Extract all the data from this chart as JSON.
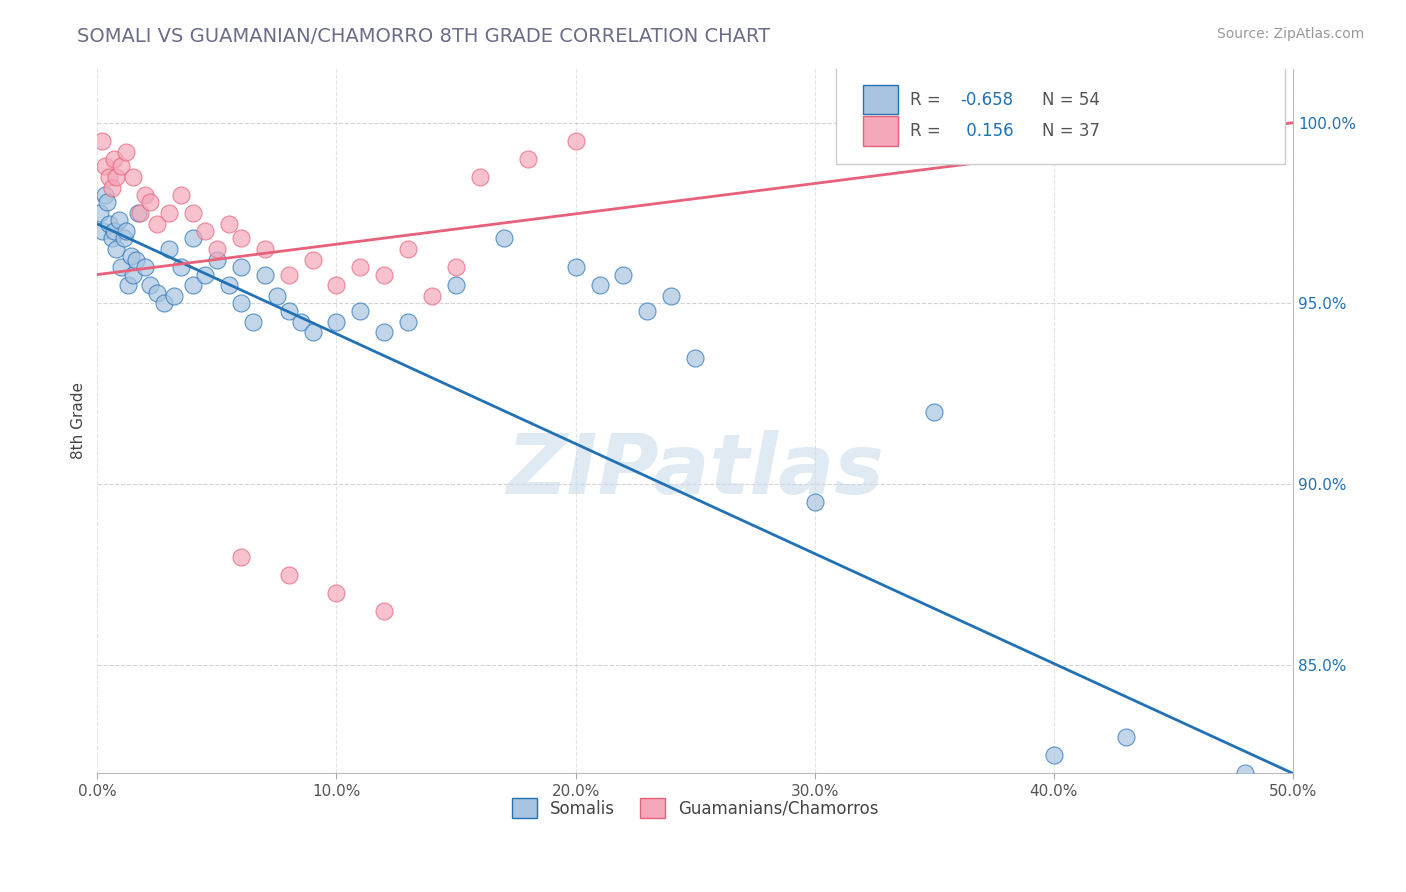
{
  "title": "SOMALI VS GUAMANIAN/CHAMORRO 8TH GRADE CORRELATION CHART",
  "source": "Source: ZipAtlas.com",
  "ylabel": "8th Grade",
  "xlim": [
    0.0,
    50.0
  ],
  "ylim": [
    82.0,
    101.5
  ],
  "xticks": [
    0.0,
    10.0,
    20.0,
    30.0,
    40.0,
    50.0
  ],
  "yticks": [
    85.0,
    90.0,
    95.0,
    100.0
  ],
  "ytick_labels": [
    "85.0%",
    "90.0%",
    "95.0%",
    "100.0%"
  ],
  "xtick_labels": [
    "0.0%",
    "10.0%",
    "20.0%",
    "30.0%",
    "40.0%",
    "50.0%"
  ],
  "legend_blue_label": "Somalis",
  "legend_pink_label": "Guamanians/Chamorros",
  "blue_R": -0.658,
  "blue_N": 54,
  "pink_R": 0.156,
  "pink_N": 37,
  "blue_color": "#a8c4e0",
  "pink_color": "#f4a7b9",
  "blue_line_color": "#2171b5",
  "pink_line_color": "#e8607a",
  "blue_scatter": [
    [
      0.1,
      97.5
    ],
    [
      0.2,
      97.0
    ],
    [
      0.3,
      98.0
    ],
    [
      0.4,
      97.8
    ],
    [
      0.5,
      97.2
    ],
    [
      0.6,
      96.8
    ],
    [
      0.7,
      97.0
    ],
    [
      0.8,
      96.5
    ],
    [
      0.9,
      97.3
    ],
    [
      1.0,
      96.0
    ],
    [
      1.1,
      96.8
    ],
    [
      1.2,
      97.0
    ],
    [
      1.3,
      95.5
    ],
    [
      1.4,
      96.3
    ],
    [
      1.5,
      95.8
    ],
    [
      1.6,
      96.2
    ],
    [
      1.7,
      97.5
    ],
    [
      2.0,
      96.0
    ],
    [
      2.2,
      95.5
    ],
    [
      2.5,
      95.3
    ],
    [
      2.8,
      95.0
    ],
    [
      3.0,
      96.5
    ],
    [
      3.2,
      95.2
    ],
    [
      3.5,
      96.0
    ],
    [
      4.0,
      95.5
    ],
    [
      4.0,
      96.8
    ],
    [
      4.5,
      95.8
    ],
    [
      5.0,
      96.2
    ],
    [
      5.5,
      95.5
    ],
    [
      6.0,
      96.0
    ],
    [
      6.0,
      95.0
    ],
    [
      6.5,
      94.5
    ],
    [
      7.0,
      95.8
    ],
    [
      7.5,
      95.2
    ],
    [
      8.0,
      94.8
    ],
    [
      8.5,
      94.5
    ],
    [
      9.0,
      94.2
    ],
    [
      10.0,
      94.5
    ],
    [
      11.0,
      94.8
    ],
    [
      12.0,
      94.2
    ],
    [
      13.0,
      94.5
    ],
    [
      15.0,
      95.5
    ],
    [
      17.0,
      96.8
    ],
    [
      20.0,
      96.0
    ],
    [
      21.0,
      95.5
    ],
    [
      22.0,
      95.8
    ],
    [
      23.0,
      94.8
    ],
    [
      24.0,
      95.2
    ],
    [
      25.0,
      93.5
    ],
    [
      30.0,
      89.5
    ],
    [
      35.0,
      92.0
    ],
    [
      40.0,
      82.5
    ],
    [
      43.0,
      83.0
    ],
    [
      48.0,
      82.0
    ]
  ],
  "pink_scatter": [
    [
      0.2,
      99.5
    ],
    [
      0.3,
      98.8
    ],
    [
      0.5,
      98.5
    ],
    [
      0.6,
      98.2
    ],
    [
      0.7,
      99.0
    ],
    [
      0.8,
      98.5
    ],
    [
      1.0,
      98.8
    ],
    [
      1.2,
      99.2
    ],
    [
      1.5,
      98.5
    ],
    [
      1.8,
      97.5
    ],
    [
      2.0,
      98.0
    ],
    [
      2.2,
      97.8
    ],
    [
      2.5,
      97.2
    ],
    [
      3.0,
      97.5
    ],
    [
      3.5,
      98.0
    ],
    [
      4.0,
      97.5
    ],
    [
      4.5,
      97.0
    ],
    [
      5.0,
      96.5
    ],
    [
      5.5,
      97.2
    ],
    [
      6.0,
      96.8
    ],
    [
      7.0,
      96.5
    ],
    [
      8.0,
      95.8
    ],
    [
      9.0,
      96.2
    ],
    [
      10.0,
      95.5
    ],
    [
      11.0,
      96.0
    ],
    [
      12.0,
      95.8
    ],
    [
      13.0,
      96.5
    ],
    [
      14.0,
      95.2
    ],
    [
      15.0,
      96.0
    ],
    [
      6.0,
      88.0
    ],
    [
      8.0,
      87.5
    ],
    [
      10.0,
      87.0
    ],
    [
      12.0,
      86.5
    ],
    [
      16.0,
      98.5
    ],
    [
      18.0,
      99.0
    ],
    [
      20.0,
      99.5
    ],
    [
      45.0,
      99.8
    ]
  ],
  "blue_line_x": [
    0.0,
    50.0
  ],
  "blue_line_y": [
    97.2,
    82.0
  ],
  "pink_line_x": [
    0.0,
    50.0
  ],
  "pink_line_y": [
    95.8,
    100.0
  ],
  "watermark": "ZIPatlas",
  "watermark_color": "#ccdcec",
  "background_color": "#ffffff",
  "grid_color": "#d0d0d0"
}
